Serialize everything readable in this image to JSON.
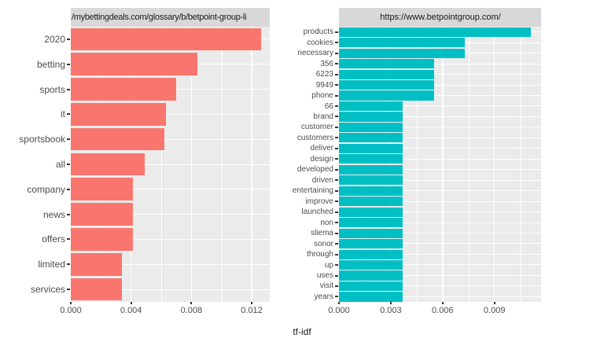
{
  "figure": {
    "background": "#ffffff",
    "panel_background": "#ebebeb",
    "strip_background": "#d8d8d8",
    "grid_color": "#ffffff",
    "axis_text_color": "#4d4d4d",
    "title_text_color": "#1a1a1a"
  },
  "chart_data": {
    "type": "bar",
    "orientation": "horizontal",
    "xlabel": "tf-idf",
    "grid": "on",
    "facets": [
      {
        "title": "/mybettingdeals.com/glossary/b/betpoint-group-li",
        "bar_color": "#F8766D",
        "axis_max": 0.0132,
        "ticks": [
          0.0,
          0.004,
          0.008,
          0.012
        ],
        "tick_labels": [
          "0.000",
          "0.004",
          "0.008",
          "0.012"
        ],
        "minor_ticks": [
          0.002,
          0.006,
          0.01
        ],
        "categories": [
          "2020",
          "betting",
          "sports",
          "it",
          "sportsbook",
          "all",
          "company",
          "news",
          "offers",
          "limited",
          "services"
        ],
        "values": [
          0.0126,
          0.0084,
          0.007,
          0.0063,
          0.0062,
          0.0049,
          0.0041,
          0.0041,
          0.0041,
          0.0034,
          0.0034
        ]
      },
      {
        "title": "https://www.betpointgroup.com/",
        "bar_color": "#00BFC4",
        "axis_max": 0.0117,
        "ticks": [
          0.0,
          0.003,
          0.006,
          0.009
        ],
        "tick_labels": [
          "0.000",
          "0.003",
          "0.006",
          "0.009"
        ],
        "minor_ticks": [
          0.0015,
          0.0045,
          0.0075,
          0.0105
        ],
        "categories": [
          "products",
          "cookies",
          "necessary",
          "356",
          "6223",
          "9949",
          "phone",
          "66",
          "brand",
          "customer",
          "customers",
          "deliver",
          "design",
          "developed",
          "driven",
          "entertaining",
          "improve",
          "launched",
          "non",
          "sliema",
          "sonor",
          "through",
          "up",
          "uses",
          "visit",
          "years"
        ],
        "values": [
          0.0111,
          0.0073,
          0.0073,
          0.0055,
          0.0055,
          0.0055,
          0.0055,
          0.0037,
          0.0037,
          0.0037,
          0.0037,
          0.0037,
          0.0037,
          0.0037,
          0.0037,
          0.0037,
          0.0037,
          0.0037,
          0.0037,
          0.0037,
          0.0037,
          0.0037,
          0.0037,
          0.0037,
          0.0037,
          0.0037
        ]
      }
    ]
  }
}
